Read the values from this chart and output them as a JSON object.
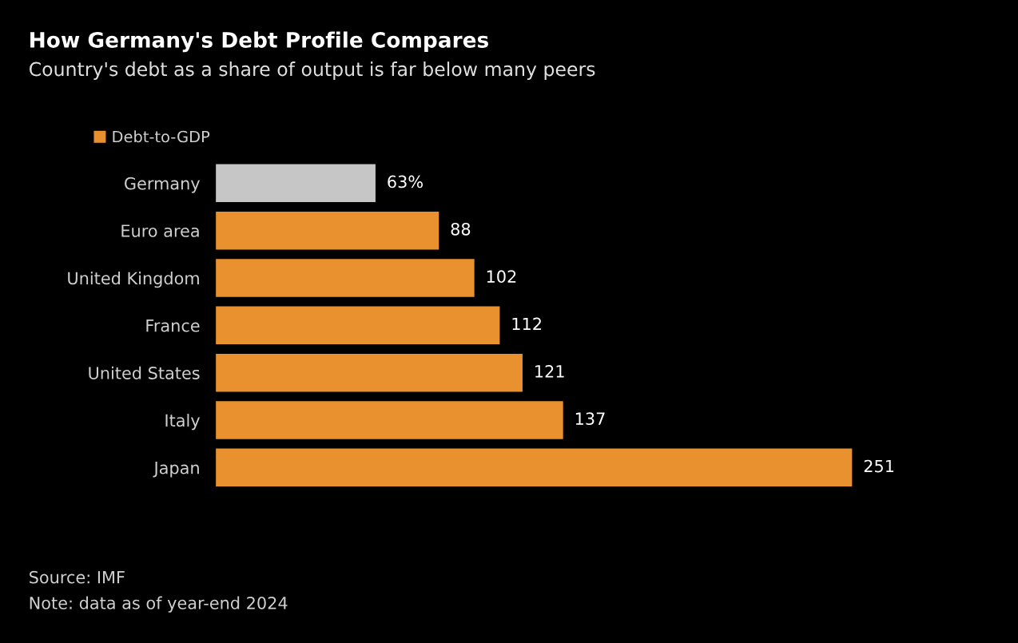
{
  "chart_data": {
    "type": "bar",
    "orientation": "horizontal",
    "title": "How Germany's Debt Profile Compares",
    "subtitle": "Country's debt as a share of output is far below many peers",
    "categories": [
      "Germany",
      "Euro area",
      "United Kingdom",
      "France",
      "United States",
      "Italy",
      "Japan"
    ],
    "series": [
      {
        "name": "Debt-to-GDP",
        "color": "#e8912e",
        "colors": [
          "#c6c6c6",
          "#e8912e",
          "#e8912e",
          "#e8912e",
          "#e8912e",
          "#e8912e",
          "#e8912e"
        ],
        "values": [
          63,
          88,
          102,
          112,
          121,
          137,
          251
        ],
        "value_labels": [
          "63%",
          "88",
          "102",
          "112",
          "121",
          "137",
          "251"
        ]
      }
    ],
    "legend": "top left",
    "grid": false,
    "tick_labels": "y",
    "annotations": [
      "Source: IMF",
      "Note: data as of year-end 2024"
    ]
  }
}
